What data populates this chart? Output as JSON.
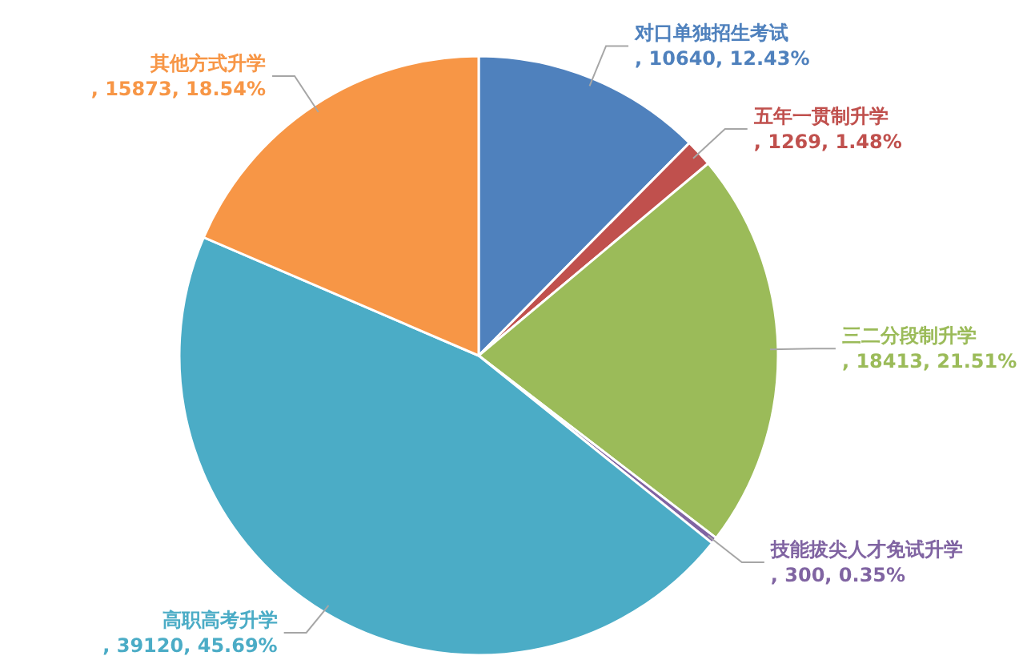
{
  "chart_data": {
    "type": "pie",
    "categories": [
      "对口单独招生考试",
      "五年一贯制升学",
      "三二分段制升学",
      "技能拔尖人才免试升学",
      "高职高考升学",
      "其他方式升学"
    ],
    "values": [
      10640,
      1269,
      18413,
      300,
      39120,
      15873
    ],
    "colors": [
      "#4f81bd",
      "#c0504d",
      "#9bbb59",
      "#8064a2",
      "#4bacc6",
      "#f79646"
    ],
    "value_labels": [
      ", 10640, 12.43%",
      ", 1269, 1.48%",
      ", 18413, 21.51%",
      ", 300, 0.35%",
      ", 39120, 45.69%",
      ", 15873, 18.54%"
    ],
    "legend": false
  }
}
